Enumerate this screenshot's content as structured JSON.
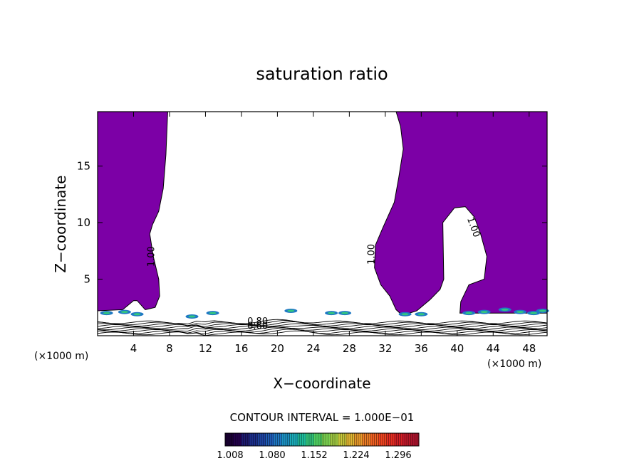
{
  "chart_data": {
    "type": "contour",
    "title": "saturation ratio",
    "xlabel": "X−coordinate",
    "ylabel": "Z−coordinate",
    "x_unit": "(×1000 m)",
    "y_unit": "(×1000 m)",
    "xlim": [
      0,
      50
    ],
    "ylim": [
      0,
      19.8
    ],
    "x_ticks": [
      4,
      8,
      12,
      16,
      20,
      24,
      28,
      32,
      36,
      40,
      44,
      48
    ],
    "x_tick_labels": [
      "4",
      "8",
      "12",
      "16",
      "20",
      "24",
      "28",
      "32",
      "36",
      "40",
      "44",
      "48"
    ],
    "y_ticks": [
      5,
      10,
      15
    ],
    "y_tick_labels": [
      "5",
      "10",
      "15"
    ],
    "contour_interval_text": "CONTOUR INTERVAL = 1.000E−01",
    "contour_labels": [
      {
        "text": "1.00",
        "x": 6.3,
        "z": 7.0
      },
      {
        "text": "1.00",
        "x": 30.8,
        "z": 7.2
      },
      {
        "text": "1.00",
        "x": 41.5,
        "z": 9.5
      },
      {
        "text": "0.80",
        "x": 17.8,
        "z": 1.0
      },
      {
        "text": "0.60",
        "x": 17.8,
        "z": 0.6
      }
    ],
    "supersaturated_regions": [
      {
        "name": "left",
        "boundary": [
          [
            0,
            19.8
          ],
          [
            7.8,
            19.8
          ],
          [
            7.6,
            16
          ],
          [
            7.3,
            13
          ],
          [
            6.8,
            11
          ],
          [
            6.1,
            9.8
          ],
          [
            5.8,
            9
          ],
          [
            6.2,
            7
          ],
          [
            6.8,
            5
          ],
          [
            6.9,
            3.5
          ],
          [
            6.4,
            2.5
          ],
          [
            5.3,
            2.3
          ],
          [
            4.4,
            3.1
          ],
          [
            4.0,
            3.1
          ],
          [
            2.8,
            2.3
          ],
          [
            0,
            2.2
          ]
        ]
      },
      {
        "name": "right",
        "boundary": [
          [
            33.2,
            19.8
          ],
          [
            50,
            19.8
          ],
          [
            50,
            2.0
          ],
          [
            40.3,
            2.0
          ],
          [
            40.4,
            3.0
          ],
          [
            41.3,
            4.5
          ],
          [
            43.0,
            5.0
          ],
          [
            43.3,
            7.0
          ],
          [
            42.6,
            9.0
          ],
          [
            41.9,
            10.5
          ],
          [
            40.9,
            11.4
          ],
          [
            39.7,
            11.3
          ],
          [
            38.4,
            10.0
          ],
          [
            38.5,
            5.0
          ],
          [
            38.1,
            4.1
          ],
          [
            37.0,
            3.2
          ],
          [
            35.5,
            2.2
          ],
          [
            33.9,
            1.8
          ],
          [
            33.2,
            2.3
          ],
          [
            32.5,
            3.5
          ],
          [
            31.5,
            4.5
          ],
          [
            30.8,
            6.0
          ],
          [
            30.9,
            8.0
          ],
          [
            31.7,
            9.5
          ],
          [
            33.0,
            11.8
          ],
          [
            33.5,
            14.0
          ],
          [
            34.0,
            16.5
          ],
          [
            33.7,
            18.5
          ]
        ]
      }
    ],
    "colorbar": {
      "tick_labels": [
        "1.008",
        "1.080",
        "1.152",
        "1.224",
        "1.296"
      ],
      "colors": [
        "#1a0033",
        "#24004d",
        "#1e1a70",
        "#1c2e8a",
        "#1e43a0",
        "#1f5bb5",
        "#1f78c4",
        "#1c92c4",
        "#1aaab7",
        "#1dbd9c",
        "#33c77d",
        "#4fcf62",
        "#7bd150",
        "#a4cf45",
        "#c7c73a",
        "#dfb431",
        "#e99a2a",
        "#ee7d25",
        "#ef5f22",
        "#ee4320",
        "#e52d22",
        "#d51f25",
        "#c11829",
        "#ab132c"
      ]
    }
  }
}
